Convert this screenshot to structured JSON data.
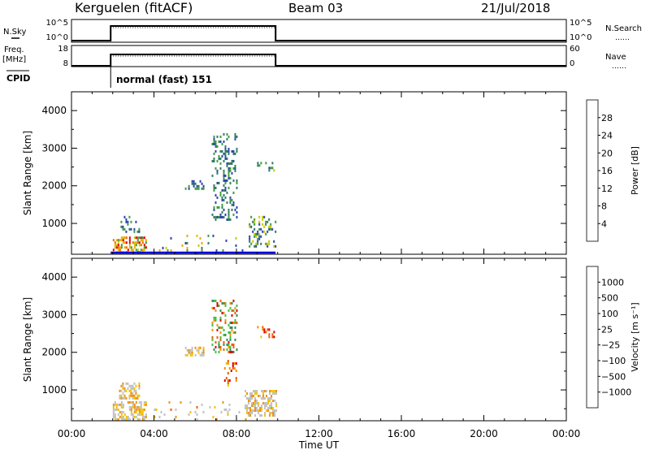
{
  "header": {
    "station": "Kerguelen (fitACF)",
    "beam": "Beam 03",
    "date": "21/Jul/2018"
  },
  "top_panels": {
    "nsky": {
      "label": "N.Sky",
      "left_ticks": [
        "10^5",
        "10^0"
      ],
      "right_ticks": [
        "10^5",
        "10^0"
      ],
      "right_label": "N.Search",
      "right_label_dots": "……"
    },
    "freq": {
      "label": "Freq.",
      "unit": "[MHz]",
      "left_ticks": [
        "18",
        "8"
      ],
      "right_ticks": [
        "60",
        "0"
      ],
      "right_label": "Nave",
      "right_label_dots": "……"
    },
    "cpid": {
      "label": "CPID",
      "mode_text": "normal (fast) 151"
    }
  },
  "chart_data": [
    {
      "type": "heatmap",
      "ylabel": "Slant Range [km]",
      "xlabel": "",
      "x_range_hours": [
        0,
        24
      ],
      "ylim": [
        180,
        4500
      ],
      "y_ticks": [
        1000,
        2000,
        3000,
        4000
      ],
      "colorbar": {
        "label": "Power [dB]",
        "ticks": [
          "4",
          "8",
          "12",
          "16",
          "20",
          "24",
          "28"
        ],
        "colors": [
          "#0000dd",
          "#2b45a8",
          "#2e7d5e",
          "#3f9a3f",
          "#c8c800",
          "#f2a600",
          "#f06a00",
          "#dd0000"
        ]
      },
      "echo_regions": [
        {
          "t": [
            2.0,
            3.6
          ],
          "r": [
            200,
            650
          ],
          "level": "high"
        },
        {
          "t": [
            2.3,
            3.3
          ],
          "r": [
            800,
            1200
          ],
          "level": "low"
        },
        {
          "t": [
            5.5,
            6.4
          ],
          "r": [
            1950,
            2150
          ],
          "level": "low"
        },
        {
          "t": [
            6.8,
            8.0
          ],
          "r": [
            1100,
            3400
          ],
          "level": "low"
        },
        {
          "t": [
            8.6,
            9.9
          ],
          "r": [
            400,
            1200
          ],
          "level": "mid"
        },
        {
          "t": [
            9.0,
            9.8
          ],
          "r": [
            2400,
            2700
          ],
          "level": "mid"
        },
        {
          "t": [
            4.0,
            8.5
          ],
          "r": [
            200,
            700
          ],
          "level": "sparse"
        }
      ]
    },
    {
      "type": "heatmap",
      "ylabel": "Slant Range [km]",
      "xlabel": "Time UT",
      "x_range_hours": [
        0,
        24
      ],
      "x_tick_labels": [
        "00:00",
        "04:00",
        "08:00",
        "12:00",
        "16:00",
        "20:00",
        "00:00"
      ],
      "ylim": [
        180,
        4500
      ],
      "y_ticks": [
        1000,
        2000,
        3000,
        4000
      ],
      "colorbar": {
        "label": "Velocity [m s⁻¹]",
        "ticks": [
          "1000",
          "500",
          "100",
          "25",
          "−25",
          "−100",
          "−500",
          "−1000"
        ],
        "colors": [
          "#0000dd",
          "#2b45a8",
          "#2e8b57",
          "#3fbf3f",
          "#c0c0c0",
          "#f2c200",
          "#f29000",
          "#f05a00",
          "#dd0000"
        ]
      },
      "echo_regions": [
        {
          "t": [
            2.0,
            3.6
          ],
          "r": [
            200,
            700
          ],
          "level": "slow"
        },
        {
          "t": [
            2.3,
            3.3
          ],
          "r": [
            800,
            1200
          ],
          "level": "slow"
        },
        {
          "t": [
            5.5,
            6.4
          ],
          "r": [
            1950,
            2150
          ],
          "level": "slow"
        },
        {
          "t": [
            7.4,
            8.0
          ],
          "r": [
            1100,
            1800
          ],
          "level": "neg"
        },
        {
          "t": [
            6.8,
            8.0
          ],
          "r": [
            2000,
            3400
          ],
          "level": "mix"
        },
        {
          "t": [
            8.4,
            9.9
          ],
          "r": [
            300,
            1000
          ],
          "level": "slow"
        },
        {
          "t": [
            9.0,
            9.8
          ],
          "r": [
            2400,
            2700
          ],
          "level": "neg"
        },
        {
          "t": [
            4.0,
            8.5
          ],
          "r": [
            200,
            700
          ],
          "level": "sparse"
        }
      ]
    }
  ],
  "operation": {
    "on_interval_hours": [
      1.9,
      9.9
    ]
  },
  "colors": {
    "axis": "#000000",
    "background": "#ffffff",
    "baseline": "#0000dd"
  }
}
